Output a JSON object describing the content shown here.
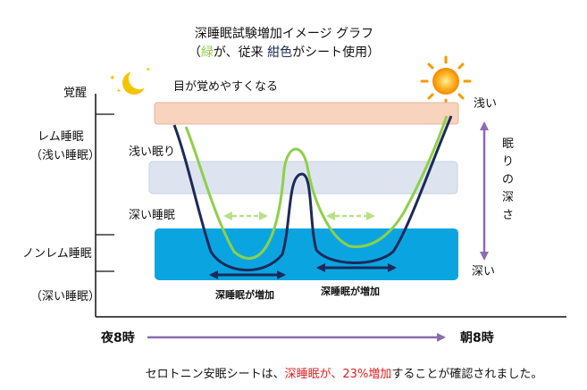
{
  "title": {
    "line1": "深睡眠試験増加イメージ グラフ",
    "line2_open": "（",
    "line2_green": "緑",
    "line2_mid": "が、従来 ",
    "line2_navy": "紺色",
    "line2_close": "がシート使用）"
  },
  "labels": {
    "wake": "覚醒",
    "wake_easy": "目が覚めやすくなる",
    "rem": "レム睡眠",
    "rem_sub": "（浅い睡眠）",
    "light_sleep": "浅い眠り",
    "deep_sleep": "深い睡眠",
    "nonrem": "ノンレム睡眠",
    "nonrem_sub": "（深い睡眠）",
    "shallow": "浅い",
    "depth": "眠りの深さ",
    "deep": "深い",
    "deep_increase_1": "深睡眠が増加",
    "deep_increase_2": "深睡眠が増加",
    "start_time": "夜8時",
    "end_time": "朝8時"
  },
  "caption": {
    "part1": "セロトニン安眠シートは、",
    "part2_red": "深睡眠が、23%増加",
    "part3": "することが確認されました。"
  },
  "colors": {
    "green": "#8fcf4a",
    "navy": "#1c2a5a",
    "red": "#e02020",
    "band_wake": "#f8d3bd",
    "band_light": "#dde4f0",
    "band_deep": "#0aa5e0",
    "arrow_purple": "#8b6bb1"
  },
  "icons": {
    "moon": "moon-icon",
    "sun": "sun-icon"
  }
}
